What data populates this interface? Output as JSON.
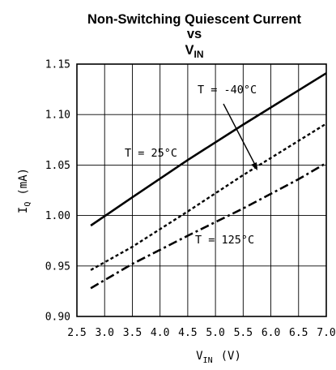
{
  "chart_data": {
    "type": "line",
    "title": "Non-Switching Quiescent Current",
    "title_line2": "vs",
    "title_line3": "V",
    "title_line3_sub": "IN",
    "xlabel": "V",
    "xlabel_sub": "IN",
    "xlabel_unit": "(V)",
    "ylabel": "I",
    "ylabel_sub": "Q",
    "ylabel_unit": "(mA)",
    "xlim": [
      2.5,
      7.0
    ],
    "ylim": [
      0.9,
      1.15
    ],
    "xticks": [
      "2.5",
      "3.0",
      "3.5",
      "4.0",
      "4.5",
      "5.0",
      "5.5",
      "6.0",
      "6.5",
      "7.0"
    ],
    "yticks": [
      "0.90",
      "0.95",
      "1.00",
      "1.05",
      "1.10",
      "1.15"
    ],
    "grid": true,
    "series": [
      {
        "name": "T = 25°C",
        "style": "solid",
        "x": [
          2.75,
          3.5,
          4.5,
          5.5,
          6.5,
          7.0
        ],
        "y": [
          0.99,
          1.018,
          1.055,
          1.09,
          1.124,
          1.141
        ]
      },
      {
        "name": "T = -40°C",
        "style": "dotted",
        "x": [
          2.75,
          3.5,
          4.5,
          5.5,
          6.5,
          7.0
        ],
        "y": [
          0.946,
          0.969,
          1.004,
          1.04,
          1.074,
          1.091
        ]
      },
      {
        "name": "T = 125°C",
        "style": "dashdot",
        "x": [
          2.75,
          3.5,
          4.5,
          5.5,
          6.5,
          7.0
        ],
        "y": [
          0.928,
          0.952,
          0.98,
          1.007,
          1.036,
          1.052
        ]
      }
    ]
  }
}
